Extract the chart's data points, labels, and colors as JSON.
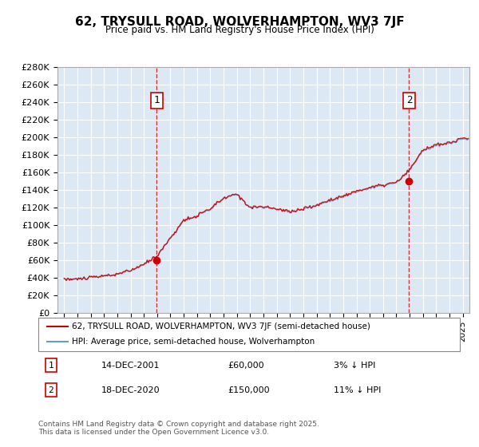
{
  "title": "62, TRYSULL ROAD, WOLVERHAMPTON, WV3 7JF",
  "subtitle": "Price paid vs. HM Land Registry's House Price Index (HPI)",
  "ylabel_prefix": "£",
  "background_color": "#dce9f5",
  "plot_bg_color": "#dce9f5",
  "ylim": [
    0,
    280000
  ],
  "ytick_step": 20000,
  "xstart": 1995,
  "xend": 2025.5,
  "transaction1": {
    "date_num": 2001.96,
    "price": 60000,
    "label": "1",
    "date_str": "14-DEC-2001",
    "pct": "3%",
    "dir": "↓"
  },
  "transaction2": {
    "date_num": 2020.96,
    "price": 150000,
    "label": "2",
    "date_str": "18-DEC-2020",
    "pct": "11%",
    "dir": "↓"
  },
  "legend_house": "62, TRYSULL ROAD, WOLVERHAMPTON, WV3 7JF (semi-detached house)",
  "legend_hpi": "HPI: Average price, semi-detached house, Wolverhampton",
  "footer": "Contains HM Land Registry data © Crown copyright and database right 2025.\nThis data is licensed under the Open Government Licence v3.0.",
  "line_color_house": "#cc0000",
  "line_color_hpi": "#6699cc",
  "dashed_line_color": "#cc0000",
  "marker_color_house": "#cc0000",
  "marker_color_hpi": "#6699cc",
  "annotation_box_color": "#ffffff",
  "annotation_border_color": "#cc0000"
}
